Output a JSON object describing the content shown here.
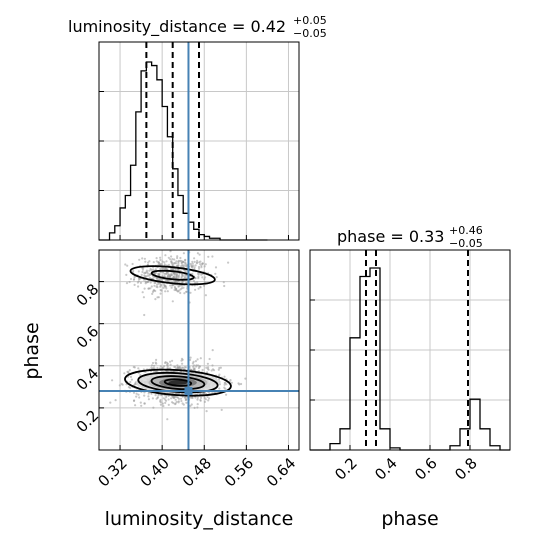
{
  "chart_data": [
    {
      "panel": "luminosity_distance-histogram",
      "type": "bar",
      "title": {
        "text": "luminosity_distance = 0.42",
        "sup": "+0.05",
        "sub": "−0.05"
      },
      "xlim": [
        0.28,
        0.66
      ],
      "xticks": [
        0.32,
        0.4,
        0.48,
        0.56,
        0.64
      ],
      "bin_edges": [
        0.28,
        0.29,
        0.3,
        0.31,
        0.32,
        0.33,
        0.34,
        0.35,
        0.36,
        0.37,
        0.38,
        0.39,
        0.4,
        0.41,
        0.42,
        0.43,
        0.44,
        0.45,
        0.46,
        0.47,
        0.48,
        0.49,
        0.5,
        0.51,
        0.52,
        0.53,
        0.54,
        0.55,
        0.56,
        0.57,
        0.58,
        0.59,
        0.6
      ],
      "values": [
        0,
        0,
        4,
        8,
        18,
        25,
        42,
        72,
        95,
        100,
        98,
        90,
        75,
        58,
        40,
        25,
        15,
        10,
        6,
        3,
        2,
        1,
        1,
        0,
        0,
        0,
        0,
        0,
        0,
        0,
        0,
        0
      ],
      "quantiles": [
        0.37,
        0.42,
        0.47
      ],
      "truth": 0.45,
      "grid": true
    },
    {
      "panel": "phase-histogram",
      "type": "bar",
      "title": {
        "text": "phase = 0.33",
        "sup": "+0.46",
        "sub": "−0.05"
      },
      "xlabel": "phase",
      "xlim": [
        0.0,
        1.0
      ],
      "xticks": [
        0.2,
        0.4,
        0.6,
        0.8
      ],
      "xtick_labels": [
        "0.2",
        "0.4",
        "0.6",
        "0.8"
      ],
      "bin_edges": [
        0.0,
        0.05,
        0.1,
        0.15,
        0.2,
        0.25,
        0.3,
        0.35,
        0.4,
        0.45,
        0.5,
        0.55,
        0.6,
        0.65,
        0.7,
        0.75,
        0.8,
        0.85,
        0.9,
        0.95,
        1.0
      ],
      "values": [
        0,
        0,
        3,
        10,
        53,
        82,
        86,
        10,
        1,
        0,
        0,
        0,
        0,
        0,
        2,
        10,
        24,
        10,
        2,
        0
      ],
      "quantiles": [
        0.28,
        0.33,
        0.79
      ],
      "grid": true
    },
    {
      "panel": "joint-scatter",
      "type": "scatter",
      "xlabel": "luminosity_distance",
      "ylabel": "phase",
      "xlim": [
        0.28,
        0.66
      ],
      "ylim": [
        0.0,
        0.95
      ],
      "xticks": [
        0.32,
        0.4,
        0.48,
        0.56,
        0.64
      ],
      "xtick_labels": [
        "0.32",
        "0.40",
        "0.48",
        "0.56",
        "0.64"
      ],
      "yticks": [
        0.2,
        0.4,
        0.6,
        0.8
      ],
      "ytick_labels": [
        "0.2",
        "0.4",
        "0.6",
        "0.8"
      ],
      "truth": {
        "x": 0.45,
        "y": 0.28
      },
      "clusters": [
        {
          "x": 0.42,
          "y": 0.83,
          "sx": 0.035,
          "sy": 0.045,
          "contours_sigma": [
            1,
            2
          ]
        },
        {
          "x": 0.43,
          "y": 0.32,
          "sx": 0.04,
          "sy": 0.045,
          "contours_sigma": [
            0.6,
            1.2,
            1.8,
            2.4
          ]
        }
      ],
      "grid": true
    }
  ],
  "colors": {
    "truth": "#4682b4",
    "contour": "#000000",
    "scatter": "#9a9a9a",
    "grid": "#c8c8c8"
  }
}
